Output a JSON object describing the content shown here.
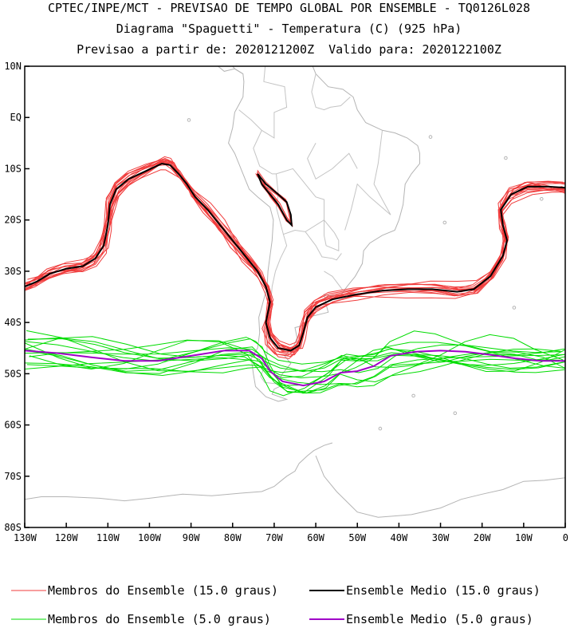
{
  "header": {
    "line1": "CPTEC/INPE/MCT - PREVISAO DE TEMPO GLOBAL POR ENSEMBLE - TQ0126L028",
    "line2": "Diagrama \"Spaguetti\" - Temperatura (C) (925 hPa)",
    "line3": "Previsao a partir de: 2020121200Z  Valido para: 2020122100Z"
  },
  "map": {
    "lon_range": [
      -130,
      0
    ],
    "lat_range": [
      -80,
      10
    ],
    "land_outline_color": "#b4b4b4",
    "lat_ticks": [
      {
        "lat": 10,
        "label": "10N"
      },
      {
        "lat": 0,
        "label": "EQ"
      },
      {
        "lat": -10,
        "label": "10S"
      },
      {
        "lat": -20,
        "label": "20S"
      },
      {
        "lat": -30,
        "label": "30S"
      },
      {
        "lat": -40,
        "label": "40S"
      },
      {
        "lat": -50,
        "label": "50S"
      },
      {
        "lat": -60,
        "label": "60S"
      },
      {
        "lat": -70,
        "label": "70S"
      },
      {
        "lat": -80,
        "label": "80S"
      }
    ],
    "lon_ticks": [
      {
        "lon": -130,
        "label": "130W"
      },
      {
        "lon": -120,
        "label": "120W"
      },
      {
        "lon": -110,
        "label": "110W"
      },
      {
        "lon": -100,
        "label": "100W"
      },
      {
        "lon": -90,
        "label": "90W"
      },
      {
        "lon": -80,
        "label": "80W"
      },
      {
        "lon": -70,
        "label": "70W"
      },
      {
        "lon": -60,
        "label": "60W"
      },
      {
        "lon": -50,
        "label": "50W"
      },
      {
        "lon": -40,
        "label": "40W"
      },
      {
        "lon": -30,
        "label": "30W"
      },
      {
        "lon": -20,
        "label": "20W"
      },
      {
        "lon": -10,
        "label": "10W"
      },
      {
        "lon": 0,
        "label": "0"
      }
    ]
  },
  "chart_data": {
    "type": "line",
    "x_axis": "longitude",
    "y_axis": "latitude",
    "series": [
      {
        "name": "Ensemble Medio (15.0 graus)",
        "color": "#000000",
        "points": [
          [
            -130,
            -33
          ],
          [
            -127,
            -32
          ],
          [
            -124,
            -30.5
          ],
          [
            -120,
            -29.5
          ],
          [
            -116,
            -29
          ],
          [
            -113,
            -27.5
          ],
          [
            -111,
            -25
          ],
          [
            -110,
            -21
          ],
          [
            -109.5,
            -17
          ],
          [
            -108,
            -14
          ],
          [
            -105,
            -12
          ],
          [
            -101,
            -10.5
          ],
          [
            -97,
            -9
          ],
          [
            -95,
            -9.3
          ],
          [
            -93,
            -11
          ],
          [
            -91,
            -13
          ],
          [
            -89,
            -15.5
          ],
          [
            -86,
            -18
          ],
          [
            -83,
            -21
          ],
          [
            -80,
            -24
          ],
          [
            -77,
            -27
          ],
          [
            -74,
            -30
          ],
          [
            -72,
            -33
          ],
          [
            -71,
            -36
          ],
          [
            -72,
            -40
          ],
          [
            -71,
            -43
          ],
          [
            -69,
            -45
          ],
          [
            -66,
            -45.5
          ],
          [
            -64,
            -44.5
          ],
          [
            -63,
            -42
          ],
          [
            -62,
            -39
          ],
          [
            -60,
            -37
          ],
          [
            -56,
            -35.5
          ],
          [
            -50,
            -34.5
          ],
          [
            -44,
            -33.8
          ],
          [
            -38,
            -33.5
          ],
          [
            -32,
            -33.5
          ],
          [
            -26,
            -34
          ],
          [
            -22,
            -33.5
          ],
          [
            -18,
            -31
          ],
          [
            -15,
            -27
          ],
          [
            -14,
            -24
          ],
          [
            -15,
            -21
          ],
          [
            -15.5,
            -18
          ],
          [
            -13,
            -15
          ],
          [
            -9,
            -13.5
          ],
          [
            -4,
            -13.5
          ],
          [
            0,
            -13.7
          ]
        ]
      },
      {
        "name": "Ensemble Medio (15.0 graus)",
        "color": "#000000",
        "points": [
          [
            -74,
            -11
          ],
          [
            -72,
            -13
          ],
          [
            -69,
            -15
          ],
          [
            -67,
            -16.5
          ],
          [
            -66,
            -19
          ],
          [
            -65.8,
            -21
          ],
          [
            -67,
            -20
          ],
          [
            -69,
            -17
          ],
          [
            -71,
            -15
          ],
          [
            -73,
            -13
          ],
          [
            -74,
            -11
          ]
        ]
      },
      {
        "name": "Ensemble Medio (5.0 graus)",
        "color": "#a000c8",
        "points": [
          [
            -130,
            -45.5
          ],
          [
            -122,
            -46
          ],
          [
            -114,
            -46.8
          ],
          [
            -106,
            -47.5
          ],
          [
            -98,
            -47.5
          ],
          [
            -90,
            -46.5
          ],
          [
            -82,
            -45.5
          ],
          [
            -76,
            -45.5
          ],
          [
            -73,
            -47
          ],
          [
            -71,
            -49.5
          ],
          [
            -68,
            -51.5
          ],
          [
            -63,
            -52.3
          ],
          [
            -58,
            -51.5
          ],
          [
            -54,
            -49.8
          ],
          [
            -50,
            -49.5
          ],
          [
            -46,
            -48.5
          ],
          [
            -42,
            -46.5
          ],
          [
            -36,
            -45.7
          ],
          [
            -30,
            -45.5
          ],
          [
            -24,
            -45.7
          ],
          [
            -18,
            -46.3
          ],
          [
            -12,
            -47
          ],
          [
            -6,
            -47.5
          ],
          [
            0,
            -47.5
          ]
        ]
      }
    ],
    "member_color_15": "#f03c3c",
    "member_color_5": "#00dc00",
    "member_counts": {
      "15.0": 14,
      "5.0": 14
    },
    "legend": [
      {
        "label": "Membros do Ensemble (15.0 graus)",
        "color": "#f03c3c"
      },
      {
        "label": "Ensemble Medio (15.0 graus)",
        "color": "#000000"
      },
      {
        "label": "Membros do Ensemble (5.0 graus)",
        "color": "#00dc00"
      },
      {
        "label": "Ensemble Medio (5.0 graus)",
        "color": "#a000c8"
      }
    ]
  }
}
